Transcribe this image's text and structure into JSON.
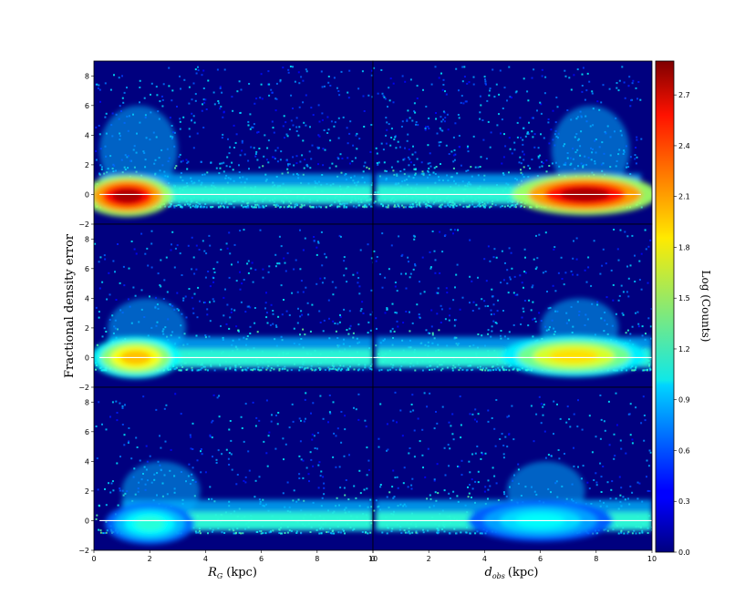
{
  "figure": {
    "ylabel": "Fractional density error",
    "xlabel_left_main": "R",
    "xlabel_left_sub": "G",
    "xlabel_left_unit": "(kpc)",
    "xlabel_right_main": "d",
    "xlabel_right_sub": "obs",
    "xlabel_right_unit": "(kpc)",
    "colorbar_label": "Log (Counts)",
    "colormap": "jet",
    "background_color": "#00007f",
    "reference_line_color": "#ffffff"
  },
  "chart_data": {
    "type": "heatmap",
    "layout": "3 rows x 2 columns, shared axes",
    "x_range": [
      0,
      10
    ],
    "y_range": [
      -2,
      9
    ],
    "x_ticks": [
      "0",
      "2",
      "4",
      "6",
      "8",
      "10"
    ],
    "y_ticks": [
      "−2",
      "0",
      "2",
      "4",
      "6",
      "8"
    ],
    "colorbar": {
      "range": [
        0.0,
        2.9
      ],
      "ticks": [
        "0.0",
        "0.3",
        "0.6",
        "0.9",
        "1.2",
        "1.5",
        "1.8",
        "2.1",
        "2.4",
        "2.7"
      ]
    },
    "reference_line_y": 0,
    "panels": [
      {
        "row": 1,
        "col": 1,
        "x_variable": "R_G (kpc)",
        "peak_x": 1.2,
        "peak_y": -0.3,
        "peak_log_counts": 2.8
      },
      {
        "row": 1,
        "col": 2,
        "x_variable": "d_obs (kpc)",
        "peak_x": 7.6,
        "peak_y": -0.2,
        "peak_log_counts": 2.8
      },
      {
        "row": 2,
        "col": 1,
        "x_variable": "R_G (kpc)",
        "peak_x": 1.5,
        "peak_y": -0.2,
        "peak_log_counts": 2.0
      },
      {
        "row": 2,
        "col": 2,
        "x_variable": "d_obs (kpc)",
        "peak_x": 7.2,
        "peak_y": -0.1,
        "peak_log_counts": 1.9
      },
      {
        "row": 3,
        "col": 1,
        "x_variable": "R_G (kpc)",
        "peak_x": 2.0,
        "peak_y": -0.4,
        "peak_log_counts": 1.2
      },
      {
        "row": 3,
        "col": 2,
        "x_variable": "d_obs (kpc)",
        "peak_x": 6.0,
        "peak_y": -0.2,
        "peak_log_counts": 1.1
      }
    ]
  }
}
